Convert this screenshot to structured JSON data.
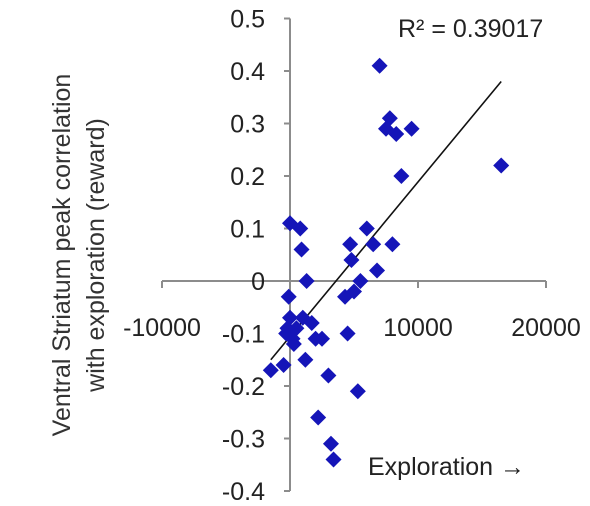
{
  "chart_data": {
    "type": "scatter",
    "title": "",
    "xlabel": "Exploration →",
    "ylabel_lines": [
      "Ventral Striatum peak correlation",
      "with exploration (reward)"
    ],
    "annotation": "R² = 0.39017",
    "xlim": [
      -10000,
      20000
    ],
    "ylim": [
      -0.4,
      0.5
    ],
    "x_ticks": [
      -10000,
      0,
      10000,
      20000
    ],
    "x_tick_labels": [
      "-10000",
      "",
      "10000",
      "20000"
    ],
    "y_ticks": [
      0.5,
      0.4,
      0.3,
      0.2,
      0.1,
      0,
      -0.1,
      -0.2,
      -0.3,
      -0.4
    ],
    "y_tick_labels": [
      "0.5",
      "0.4",
      "0.3",
      "0.2",
      "0.1",
      "0",
      "-0.1",
      "-0.2",
      "-0.3",
      "-0.4"
    ],
    "grid": false,
    "marker_color": "#1515b8",
    "trendline_color": "#111111",
    "trendline": {
      "x": [
        -1500,
        16500
      ],
      "y": [
        -0.15,
        0.38
      ]
    },
    "points": [
      {
        "x": -1500,
        "y": -0.17
      },
      {
        "x": -500,
        "y": -0.16
      },
      {
        "x": -300,
        "y": -0.1
      },
      {
        "x": -200,
        "y": -0.09
      },
      {
        "x": -100,
        "y": -0.03
      },
      {
        "x": 0,
        "y": 0.11
      },
      {
        "x": 0,
        "y": -0.07
      },
      {
        "x": 200,
        "y": -0.11
      },
      {
        "x": 300,
        "y": -0.12
      },
      {
        "x": 500,
        "y": -0.09
      },
      {
        "x": 800,
        "y": 0.1
      },
      {
        "x": 900,
        "y": 0.06
      },
      {
        "x": 1000,
        "y": -0.07
      },
      {
        "x": 1200,
        "y": -0.15
      },
      {
        "x": 1300,
        "y": 0.0
      },
      {
        "x": 1700,
        "y": -0.08
      },
      {
        "x": 2000,
        "y": -0.11
      },
      {
        "x": 2200,
        "y": -0.26
      },
      {
        "x": 2500,
        "y": -0.11
      },
      {
        "x": 3000,
        "y": -0.18
      },
      {
        "x": 3200,
        "y": -0.31
      },
      {
        "x": 3400,
        "y": -0.34
      },
      {
        "x": 4300,
        "y": -0.03
      },
      {
        "x": 4500,
        "y": -0.1
      },
      {
        "x": 4700,
        "y": 0.07
      },
      {
        "x": 4800,
        "y": 0.04
      },
      {
        "x": 5000,
        "y": -0.02
      },
      {
        "x": 5300,
        "y": -0.21
      },
      {
        "x": 5500,
        "y": 0.0
      },
      {
        "x": 6000,
        "y": 0.1
      },
      {
        "x": 6500,
        "y": 0.07
      },
      {
        "x": 6800,
        "y": 0.02
      },
      {
        "x": 7000,
        "y": 0.41
      },
      {
        "x": 7500,
        "y": 0.29
      },
      {
        "x": 7800,
        "y": 0.31
      },
      {
        "x": 8000,
        "y": 0.07
      },
      {
        "x": 8300,
        "y": 0.28
      },
      {
        "x": 8700,
        "y": 0.2
      },
      {
        "x": 9500,
        "y": 0.29
      },
      {
        "x": 16500,
        "y": 0.22
      }
    ]
  }
}
